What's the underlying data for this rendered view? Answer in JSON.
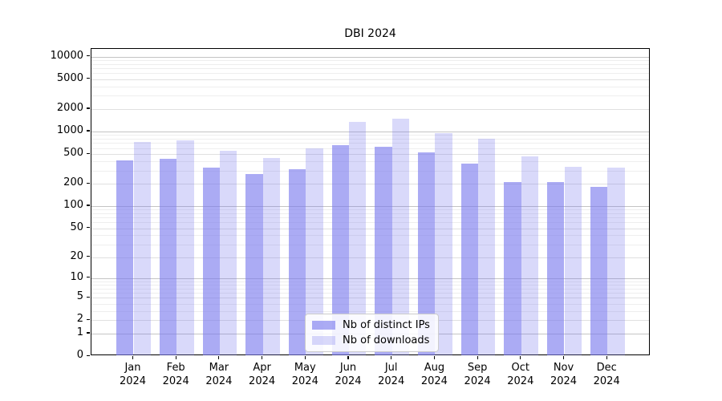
{
  "chart_data": {
    "type": "bar",
    "title": "DBI 2024",
    "xlabel": "",
    "ylabel": "",
    "scale": "log1p",
    "grid": true,
    "legend_position": "bottom-center",
    "ylim": [
      0,
      12700
    ],
    "yticks": [
      0,
      1,
      2,
      5,
      10,
      20,
      50,
      100,
      200,
      500,
      1000,
      2000,
      5000,
      10000
    ],
    "categories": [
      "Jan 2024",
      "Feb 2024",
      "Mar 2024",
      "Apr 2024",
      "May 2024",
      "Jun 2024",
      "Jul 2024",
      "Aug 2024",
      "Sep 2024",
      "Oct 2024",
      "Nov 2024",
      "Dec 2024"
    ],
    "series": [
      {
        "name": "Nb of distinct IPs",
        "color": "rgba(119,119,238,0.62)",
        "values": [
          410,
          430,
          328,
          270,
          313,
          660,
          630,
          525,
          370,
          213,
          210,
          180
        ]
      },
      {
        "name": "Nb of downloads",
        "color": "rgba(119,119,238,0.28)",
        "values": [
          720,
          765,
          550,
          447,
          590,
          1350,
          1500,
          940,
          800,
          465,
          340,
          325
        ]
      }
    ]
  }
}
